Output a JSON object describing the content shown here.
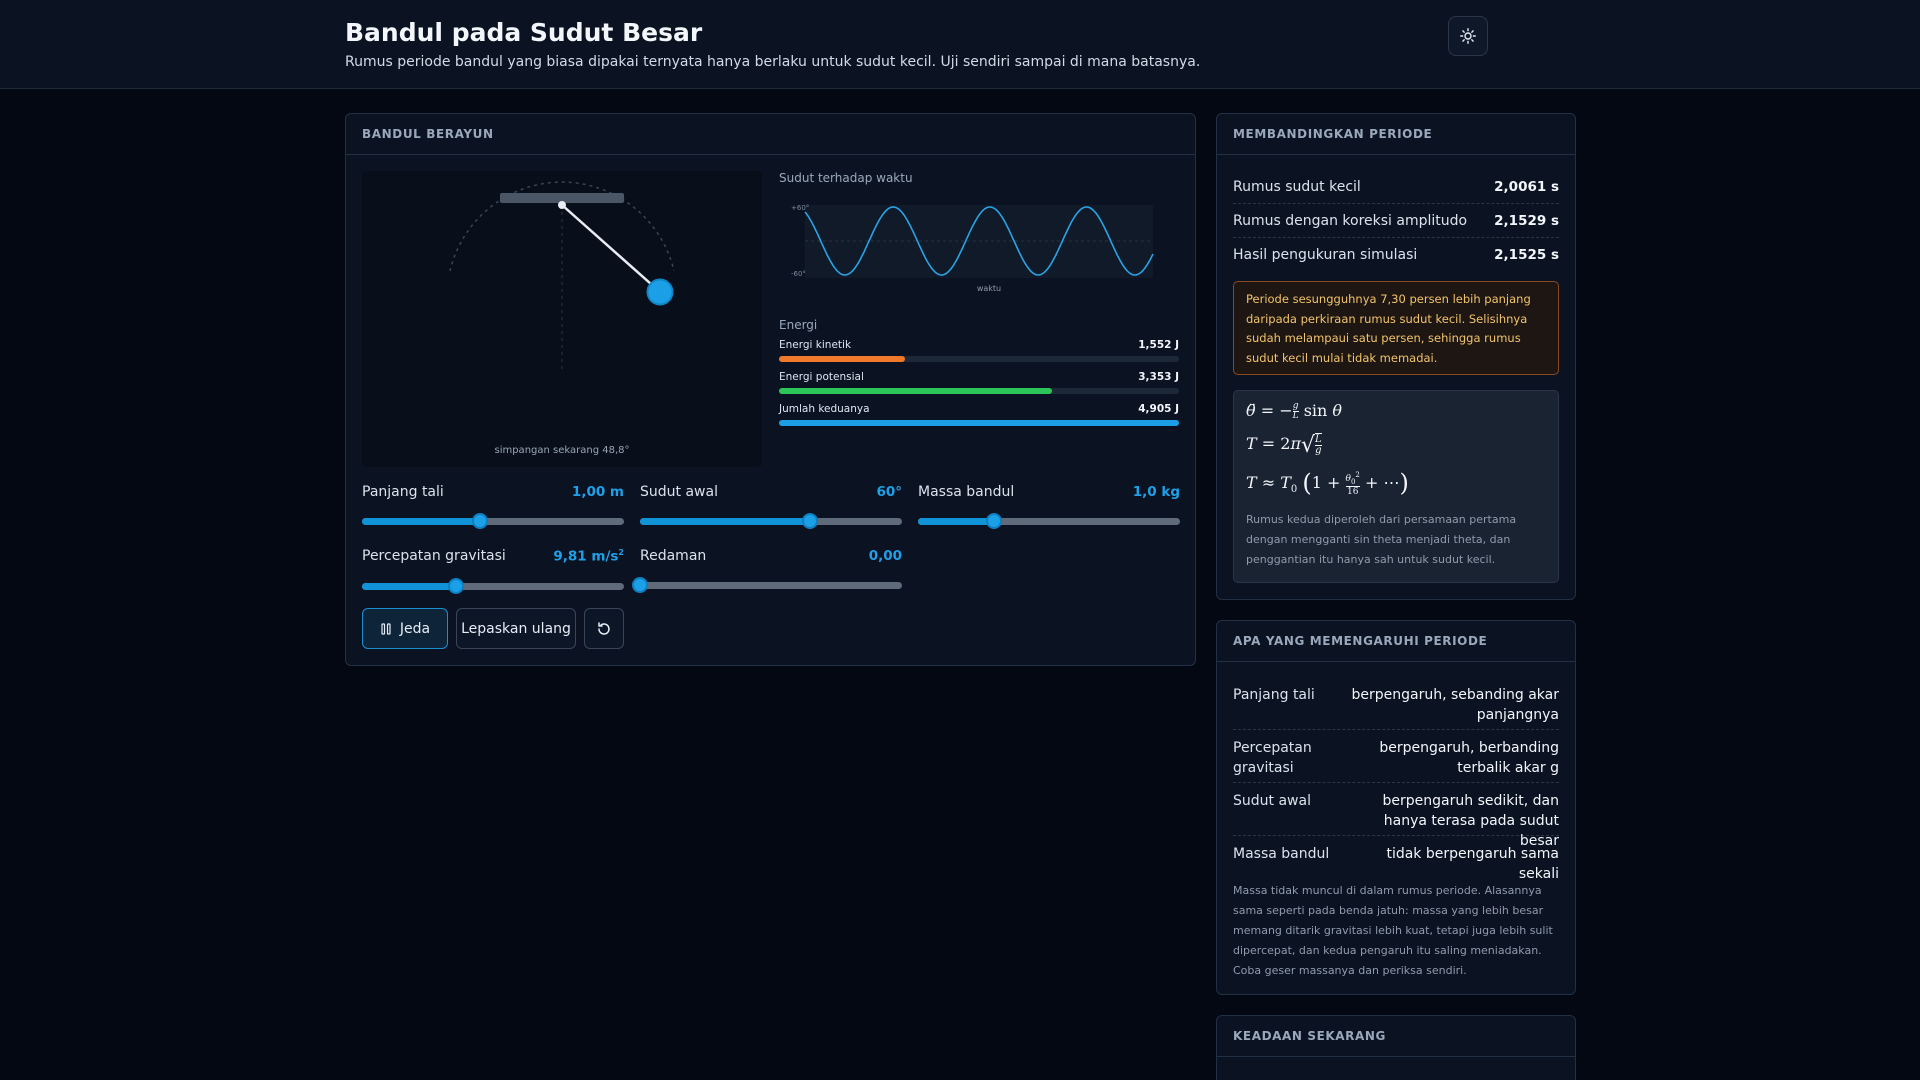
{
  "header": {
    "title": "Bandul pada Sudut Besar",
    "subtitle": "Rumus periode bandul yang biasa dipakai ternyata hanya berlaku untuk sudut kecil. Uji sendiri sampai di mana batasnya.",
    "theme_icon": "sun-icon"
  },
  "sim": {
    "heading": "BANDUL BERAYUN",
    "stage_caption": "simpangan sekarang 48,8°",
    "graph": {
      "title": "Sudut terhadap waktu",
      "y_top": "+60°",
      "y_bottom": "-60°",
      "xlabel": "waktu",
      "line_color": "#2aa3e6"
    },
    "energy": {
      "title": "Energi",
      "items": [
        {
          "label": "Energi kinetik",
          "value": "1,552 J",
          "fraction": 0.316,
          "color": "#f07a2a"
        },
        {
          "label": "Energi potensial",
          "value": "3,353 J",
          "fraction": 0.683,
          "color": "#2cc55a"
        },
        {
          "label": "Jumlah keduanya",
          "value": "4,905 J",
          "fraction": 1.0,
          "color": "#1ba0e8"
        }
      ]
    },
    "controls": {
      "length": {
        "label": "Panjang tali",
        "value": "1,00 m",
        "fraction": 0.45
      },
      "angle": {
        "label": "Sudut awal",
        "value": "60°",
        "fraction": 0.65
      },
      "mass": {
        "label": "Massa bandul",
        "value": "1,0 kg",
        "fraction": 0.29
      },
      "gravity": {
        "label": "Percepatan gravitasi",
        "value": "9,81 m/s",
        "unit_sup": "2",
        "fraction": 0.36
      },
      "damping": {
        "label": "Redaman",
        "value": "0,00",
        "fraction": 0.0
      }
    },
    "buttons": {
      "pause": "Jeda",
      "release": "Lepaskan ulang"
    }
  },
  "compare": {
    "heading": "MEMBANDINGKAN PERIODE",
    "rows": [
      {
        "label": "Rumus sudut kecil",
        "value": "2,0061 s"
      },
      {
        "label": "Rumus dengan koreksi amplitudo",
        "value": "2,1529 s"
      },
      {
        "label": "Hasil pengukuran simulasi",
        "value": "2,1525 s"
      }
    ],
    "warning": "Periode sesungguhnya 7,30 persen lebih panjang daripada perkiraan rumus sudut kecil. Selisihnya sudah melampaui satu persen, sehingga rumus sudut kecil mulai tidak memadai.",
    "formula_note": "Rumus kedua diperoleh dari persamaan pertama dengan mengganti sin theta menjadi theta, dan penggantian itu hanya sah untuk sudut kecil."
  },
  "factors": {
    "heading": "APA YANG MEMENGARUHI PERIODE",
    "rows": [
      {
        "label": "Panjang tali",
        "value": "berpengaruh, sebanding akar panjangnya"
      },
      {
        "label": "Percepatan gravitasi",
        "value": "berpengaruh, berbanding terbalik akar g"
      },
      {
        "label": "Sudut awal",
        "value": "berpengaruh sedikit, dan hanya terasa pada sudut besar"
      },
      {
        "label": "Massa bandul",
        "value": "tidak berpengaruh sama sekali"
      }
    ],
    "note": "Massa tidak muncul di dalam rumus periode. Alasannya sama seperti pada benda jatuh: massa yang lebih besar memang ditarik gravitasi lebih kuat, tetapi juga lebih sulit dipercepat, dan kedua pengaruh itu saling meniadakan. Coba geser massanya dan periksa sendiri."
  },
  "state": {
    "heading": "KEADAAN SEKARANG"
  }
}
